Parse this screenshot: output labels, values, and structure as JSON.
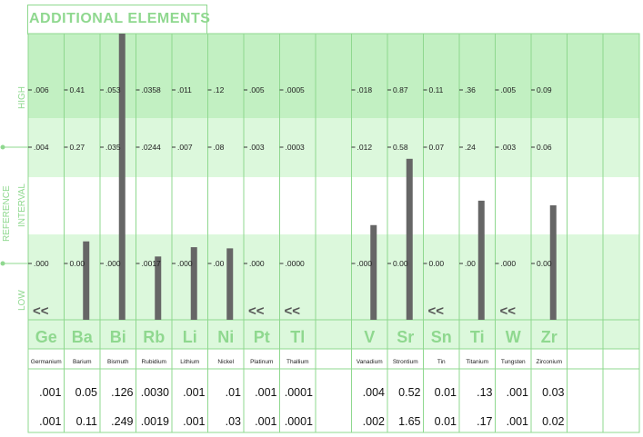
{
  "header": {
    "title": "ADDITIONAL  ELEMENTS"
  },
  "labels": {
    "high": "HIGH",
    "reference": "REFERENCE",
    "interval": "INTERVAL",
    "low": "LOW"
  },
  "low_marker": "<<",
  "colors": {
    "green_dark": "#a3e6a3",
    "green_mid": "#c2f0c2",
    "green_light": "#dcf8dc",
    "grid": "#8fd88f",
    "bar": "#666666",
    "text_green": "#8fd88f"
  },
  "chart_data": {
    "type": "bar",
    "title": "ADDITIONAL  ELEMENTS",
    "y_bands": [
      "HIGH",
      "REFERENCE INTERVAL",
      "LOW"
    ],
    "columns": [
      {
        "symbol": "Ge",
        "name": "Germanium",
        "high": ".006",
        "upper": ".004",
        "lower": ".000",
        "result": ".001",
        "prior": ".001",
        "level": 0.0,
        "low": true
      },
      {
        "symbol": "Ba",
        "name": "Barium",
        "high": "0.41",
        "upper": "0.27",
        "lower": "0.00",
        "result": "0.05",
        "prior": "0.11",
        "level": 0.19,
        "low": false
      },
      {
        "symbol": "Bi",
        "name": "Bismuth",
        "high": ".053",
        "upper": ".035",
        "lower": ".000",
        "result": ".126",
        "prior": ".249",
        "level": 3.6,
        "low": false
      },
      {
        "symbol": "Rb",
        "name": "Rubidium",
        "high": ".0358",
        "upper": ".0244",
        "lower": ".0017",
        "result": ".0030",
        "prior": ".0019",
        "level": 0.06,
        "low": false
      },
      {
        "symbol": "Li",
        "name": "Lithium",
        "high": ".011",
        "upper": ".007",
        "lower": ".000",
        "result": ".001",
        "prior": ".001",
        "level": 0.14,
        "low": false
      },
      {
        "symbol": "Ni",
        "name": "Nickel",
        "high": ".12",
        "upper": ".08",
        "lower": ".00",
        "result": ".01",
        "prior": ".03",
        "level": 0.13,
        "low": false
      },
      {
        "symbol": "Pt",
        "name": "Platinum",
        "high": ".005",
        "upper": ".003",
        "lower": ".000",
        "result": ".001",
        "prior": ".001",
        "level": 0.0,
        "low": true
      },
      {
        "symbol": "Tl",
        "name": "Thallium",
        "high": ".0005",
        "upper": ".0003",
        "lower": ".0000",
        "result": ".0001",
        "prior": ".0001",
        "level": 0.0,
        "low": true
      },
      {
        "symbol": "",
        "name": "",
        "high": "",
        "upper": "",
        "lower": "",
        "result": "",
        "prior": "",
        "level": 0.0,
        "low": false
      },
      {
        "symbol": "V",
        "name": "Vanadium",
        "high": ".018",
        "upper": ".012",
        "lower": ".000",
        "result": ".004",
        "prior": ".002",
        "level": 0.33,
        "low": false
      },
      {
        "symbol": "Sr",
        "name": "Strontium",
        "high": "0.87",
        "upper": "0.58",
        "lower": "0.00",
        "result": "0.52",
        "prior": "1.65",
        "level": 0.9,
        "low": false
      },
      {
        "symbol": "Sn",
        "name": "Tin",
        "high": "0.11",
        "upper": "0.07",
        "lower": "0.00",
        "result": "0.01",
        "prior": "0.01",
        "level": 0.0,
        "low": true
      },
      {
        "symbol": "Ti",
        "name": "Titanium",
        "high": ".36",
        "upper": ".24",
        "lower": ".00",
        "result": ".13",
        "prior": ".17",
        "level": 0.54,
        "low": false
      },
      {
        "symbol": "W",
        "name": "Tungsten",
        "high": ".005",
        "upper": ".003",
        "lower": ".000",
        "result": ".001",
        "prior": ".001",
        "level": 0.0,
        "low": true
      },
      {
        "symbol": "Zr",
        "name": "Zirconium",
        "high": "0.09",
        "upper": "0.06",
        "lower": "0.00",
        "result": "0.03",
        "prior": "0.02",
        "level": 0.5,
        "low": false
      },
      {
        "symbol": "",
        "name": "",
        "high": "",
        "upper": "",
        "lower": "",
        "result": "",
        "prior": "",
        "level": 0.0,
        "low": false
      },
      {
        "symbol": "",
        "name": "",
        "high": "",
        "upper": "",
        "lower": "",
        "result": "",
        "prior": "",
        "level": 0.0,
        "low": false
      }
    ]
  }
}
